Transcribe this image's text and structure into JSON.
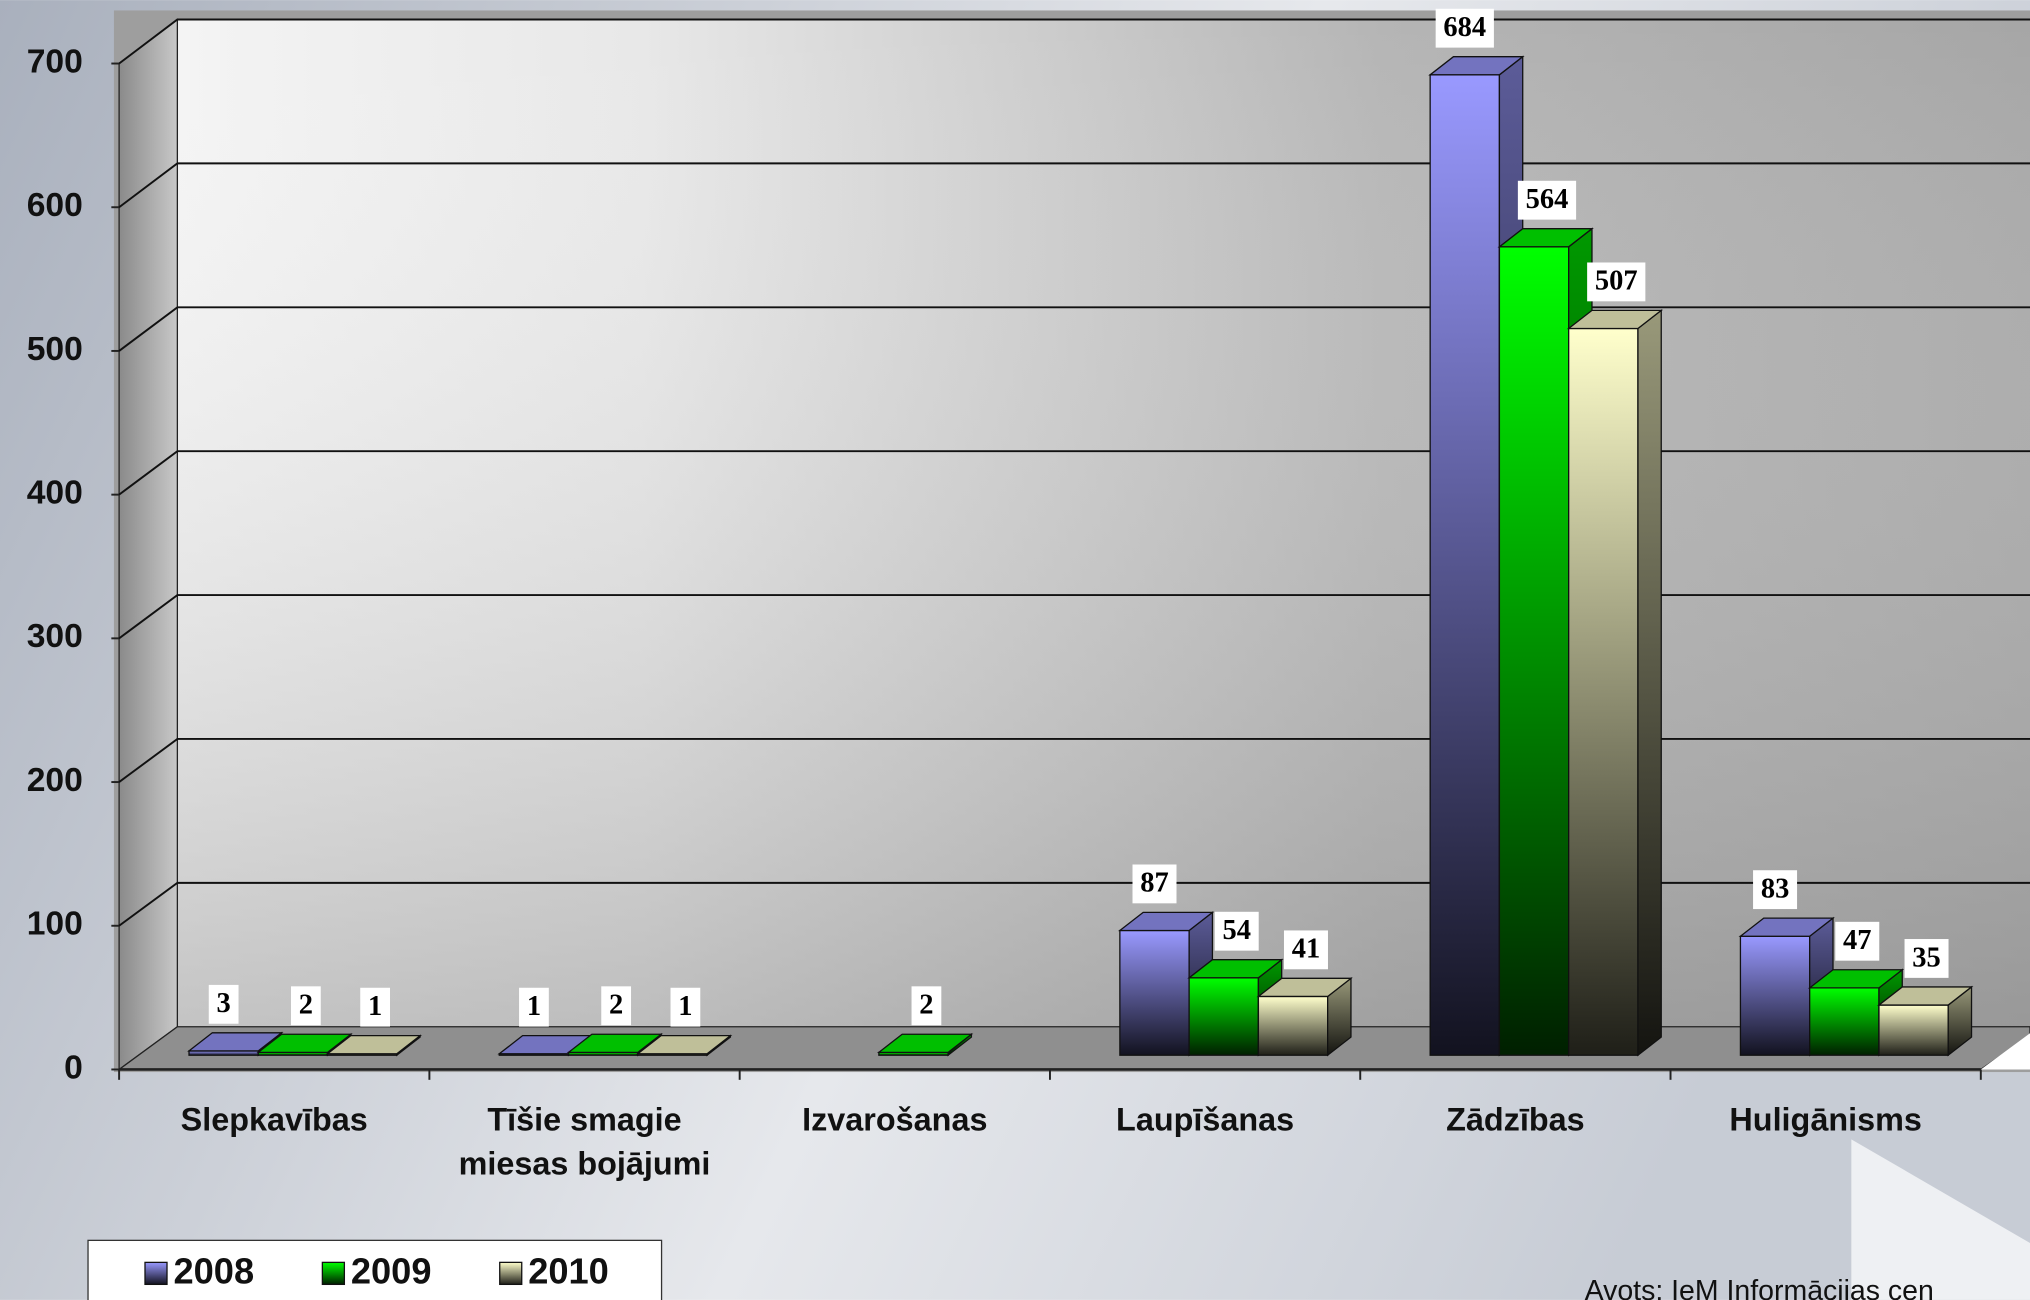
{
  "chart_data": {
    "type": "bar3d",
    "categories": [
      "Slepkavības",
      "Tīšie smagie miesas bojājumi",
      "Izvarošanas",
      "Laupīšanas",
      "Zādzības",
      "Huligānisms"
    ],
    "series": [
      {
        "name": "2008",
        "color": "#9999ff",
        "values": [
          3,
          1,
          null,
          87,
          684,
          83
        ]
      },
      {
        "name": "2009",
        "color": "#00ff00",
        "values": [
          2,
          2,
          2,
          54,
          564,
          47
        ]
      },
      {
        "name": "2010",
        "color": "#ffffcc",
        "values": [
          1,
          1,
          null,
          41,
          507,
          35
        ]
      }
    ],
    "ylim": [
      0,
      700
    ],
    "yticks": [
      0,
      100,
      200,
      300,
      400,
      500,
      600,
      700
    ],
    "grid": true,
    "legend": "bottom-left"
  },
  "source": "Avots: IeM Informācijas cen"
}
